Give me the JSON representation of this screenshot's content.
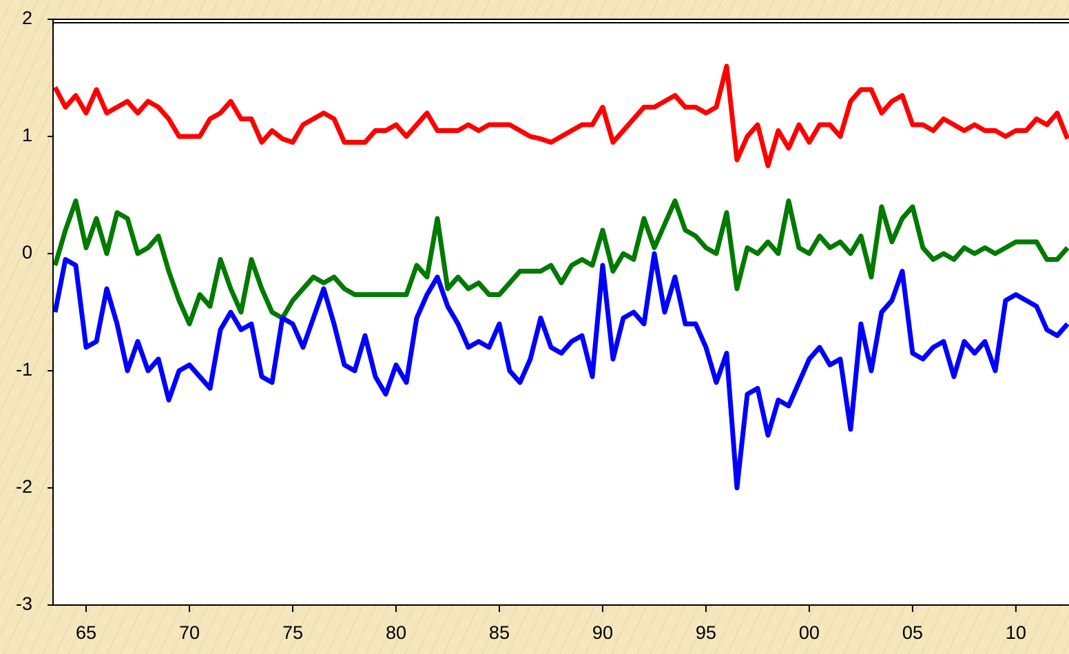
{
  "chart_data": {
    "type": "line",
    "x": [
      1963.5,
      1964,
      1964.5,
      1965,
      1965.5,
      1966,
      1966.5,
      1967,
      1967.5,
      1968,
      1968.5,
      1969,
      1969.5,
      1970,
      1970.5,
      1971,
      1971.5,
      1972,
      1972.5,
      1973,
      1973.5,
      1974,
      1974.5,
      1975,
      1975.5,
      1976,
      1976.5,
      1977,
      1977.5,
      1978,
      1978.5,
      1979,
      1979.5,
      1980,
      1980.5,
      1981,
      1981.5,
      1982,
      1982.5,
      1983,
      1983.5,
      1984,
      1984.5,
      1985,
      1985.5,
      1986,
      1986.5,
      1987,
      1987.5,
      1988,
      1988.5,
      1989,
      1989.5,
      1990,
      1990.5,
      1991,
      1991.5,
      1992,
      1992.5,
      1993,
      1993.5,
      1994,
      1994.5,
      1995,
      1995.5,
      1996,
      1996.5,
      1997,
      1997.5,
      1998,
      1998.5,
      1999,
      1999.5,
      2000,
      2000.5,
      2001,
      2001.5,
      2002,
      2002.5,
      2003,
      2003.5,
      2004,
      2004.5,
      2005,
      2005.5,
      2006,
      2006.5,
      2007,
      2007.5,
      2008,
      2008.5,
      2009,
      2009.5,
      2010,
      2010.5,
      2011,
      2011.5,
      2012,
      2012.5
    ],
    "series": [
      {
        "color": "#ff0000",
        "values": [
          1.42,
          1.25,
          1.35,
          1.2,
          1.4,
          1.2,
          1.25,
          1.3,
          1.2,
          1.3,
          1.25,
          1.15,
          1.0,
          1.0,
          1.0,
          1.15,
          1.2,
          1.3,
          1.15,
          1.15,
          0.95,
          1.05,
          0.98,
          0.95,
          1.1,
          1.15,
          1.2,
          1.15,
          0.95,
          0.95,
          0.95,
          1.05,
          1.05,
          1.1,
          1.0,
          1.1,
          1.2,
          1.05,
          1.05,
          1.05,
          1.1,
          1.05,
          1.1,
          1.1,
          1.1,
          1.05,
          1.0,
          0.98,
          0.95,
          1.0,
          1.05,
          1.1,
          1.1,
          1.25,
          0.95,
          1.05,
          1.15,
          1.25,
          1.25,
          1.3,
          1.35,
          1.25,
          1.25,
          1.2,
          1.25,
          1.6,
          0.8,
          1.0,
          1.1,
          0.75,
          1.05,
          0.9,
          1.1,
          0.95,
          1.1,
          1.1,
          1.0,
          1.3,
          1.4,
          1.4,
          1.2,
          1.3,
          1.35,
          1.1,
          1.1,
          1.05,
          1.15,
          1.1,
          1.05,
          1.1,
          1.05,
          1.05,
          1.0,
          1.05,
          1.05,
          1.15,
          1.1,
          1.2,
          0.98
        ]
      },
      {
        "color": "#007a00",
        "values": [
          -0.1,
          0.2,
          0.45,
          0.05,
          0.3,
          0.0,
          0.35,
          0.3,
          0.0,
          0.05,
          0.15,
          -0.15,
          -0.4,
          -0.6,
          -0.35,
          -0.45,
          -0.05,
          -0.3,
          -0.5,
          -0.05,
          -0.3,
          -0.5,
          -0.55,
          -0.4,
          -0.3,
          -0.2,
          -0.25,
          -0.2,
          -0.3,
          -0.35,
          -0.35,
          -0.35,
          -0.35,
          -0.35,
          -0.35,
          -0.1,
          -0.2,
          0.3,
          -0.3,
          -0.2,
          -0.3,
          -0.25,
          -0.35,
          -0.35,
          -0.25,
          -0.15,
          -0.15,
          -0.15,
          -0.1,
          -0.25,
          -0.1,
          -0.05,
          -0.1,
          0.2,
          -0.15,
          0.0,
          -0.05,
          0.3,
          0.05,
          0.25,
          0.45,
          0.2,
          0.15,
          0.05,
          0.0,
          0.35,
          -0.3,
          0.05,
          0.0,
          0.1,
          0.0,
          0.45,
          0.05,
          0.0,
          0.15,
          0.05,
          0.1,
          0.0,
          0.15,
          -0.2,
          0.4,
          0.1,
          0.3,
          0.4,
          0.05,
          -0.05,
          0.0,
          -0.05,
          0.05,
          0.0,
          0.05,
          0.0,
          0.05,
          0.1,
          0.1,
          0.1,
          -0.05,
          -0.05,
          0.05
        ]
      },
      {
        "color": "#0000ff",
        "values": [
          -0.5,
          -0.05,
          -0.1,
          -0.8,
          -0.75,
          -0.3,
          -0.6,
          -1.0,
          -0.75,
          -1.0,
          -0.9,
          -1.25,
          -1.0,
          -0.95,
          -1.05,
          -1.15,
          -0.65,
          -0.5,
          -0.65,
          -0.6,
          -1.05,
          -1.1,
          -0.55,
          -0.6,
          -0.8,
          -0.55,
          -0.3,
          -0.6,
          -0.95,
          -1.0,
          -0.7,
          -1.05,
          -1.2,
          -0.95,
          -1.1,
          -0.55,
          -0.35,
          -0.2,
          -0.45,
          -0.6,
          -0.8,
          -0.75,
          -0.8,
          -0.6,
          -1.0,
          -1.1,
          -0.9,
          -0.55,
          -0.8,
          -0.85,
          -0.75,
          -0.7,
          -1.05,
          -0.1,
          -0.9,
          -0.55,
          -0.5,
          -0.6,
          0.0,
          -0.5,
          -0.2,
          -0.6,
          -0.6,
          -0.8,
          -1.1,
          -0.85,
          -2.0,
          -1.2,
          -1.15,
          -1.55,
          -1.25,
          -1.3,
          -1.1,
          -0.9,
          -0.8,
          -0.95,
          -0.9,
          -1.5,
          -0.6,
          -1.0,
          -0.5,
          -0.4,
          -0.15,
          -0.85,
          -0.9,
          -0.8,
          -0.75,
          -1.05,
          -0.75,
          -0.85,
          -0.75,
          -1.0,
          -0.4,
          -0.35,
          -0.4,
          -0.45,
          -0.65,
          -0.7,
          -0.6
        ]
      }
    ],
    "xlim": [
      1963.4,
      2012.57
    ],
    "xticks": [
      {
        "value": 1965,
        "label": "65"
      },
      {
        "value": 1970,
        "label": "70"
      },
      {
        "value": 1975,
        "label": "75"
      },
      {
        "value": 1980,
        "label": "80"
      },
      {
        "value": 1985,
        "label": "85"
      },
      {
        "value": 1990,
        "label": "90"
      },
      {
        "value": 1995,
        "label": "95"
      },
      {
        "value": 2000,
        "label": "00"
      },
      {
        "value": 2005,
        "label": "05"
      },
      {
        "value": 2010,
        "label": "10"
      }
    ],
    "ylim": [
      -3,
      2
    ],
    "yticks": [
      -3,
      -2,
      -1,
      0,
      1,
      2
    ]
  }
}
